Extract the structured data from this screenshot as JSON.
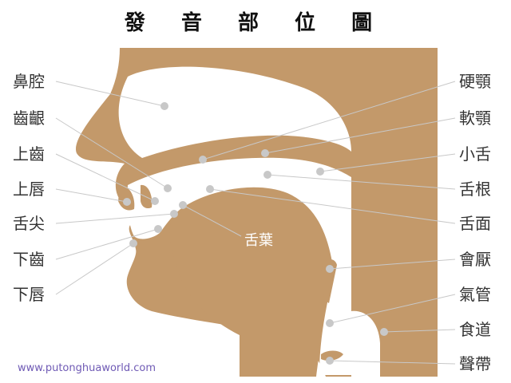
{
  "title": "發 音 部 位 圖",
  "website": "www.putonghuaworld.com",
  "colors": {
    "flesh": "#c3996a",
    "line": "#c8c8c8",
    "dot": "#c8c8c8"
  },
  "labels_left": [
    "鼻腔",
    "齒齦",
    "上齒",
    "上唇",
    "舌尖",
    "下齒",
    "下唇"
  ],
  "labels_right": [
    "硬顎",
    "軟顎",
    "小舌",
    "舌根",
    "舌面",
    "會厭",
    "氣管",
    "食道",
    "聲帶"
  ],
  "inner_label": "舌葉"
}
